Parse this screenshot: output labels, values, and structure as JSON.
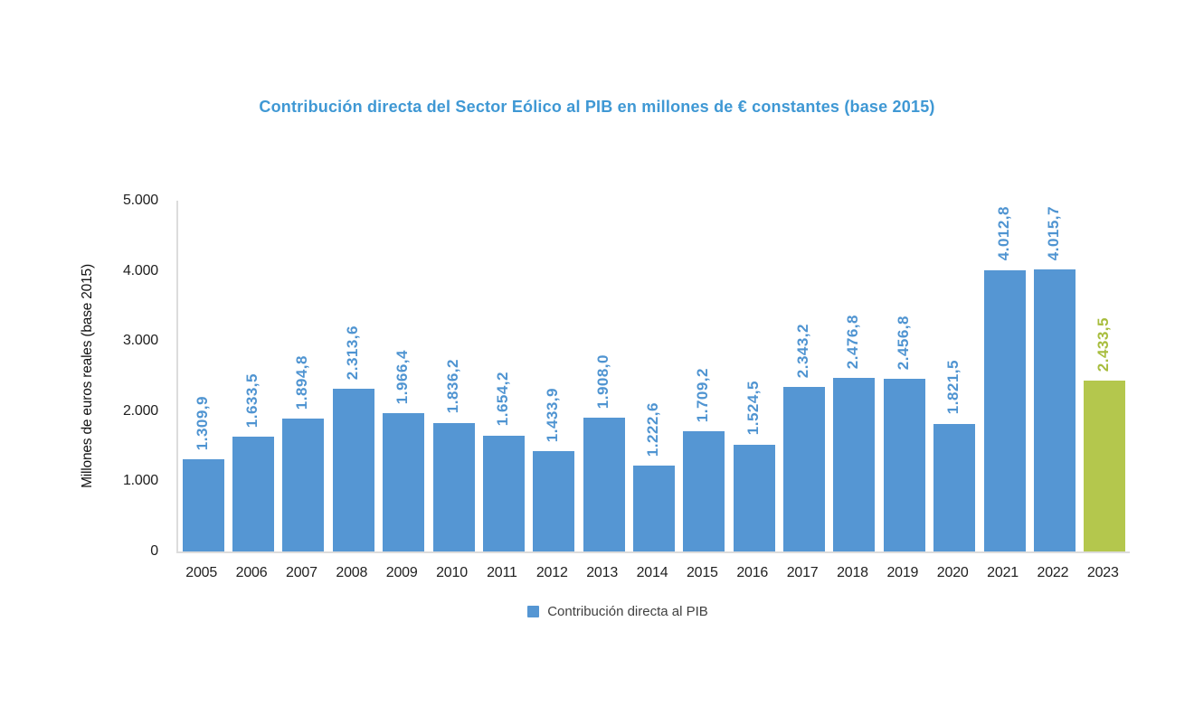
{
  "header": {
    "title": "Contribución directa del Sector Eólico al PIB en millones de € constantes (base 2015)"
  },
  "legend": {
    "label": "Contribución directa al PIB"
  },
  "colors": {
    "bar_blue": "#5596d3",
    "bar_green": "#b4c74d",
    "label_blue": "#4f94d1",
    "label_green": "#a8bd3e",
    "title_blue": "#3f98d4",
    "axis_line": "#dcdcdc",
    "tick_text": "#1f1f1f",
    "legend_text": "#404040"
  },
  "chart_data": {
    "type": "bar",
    "title": "Contribución directa del Sector Eólico al PIB en millones de € constantes (base 2015)",
    "xlabel": "",
    "ylabel": "Millones de euros reales (base 2015)",
    "ylim": [
      0,
      5000
    ],
    "grid": false,
    "legend_position": "bottom",
    "y_ticks": [
      {
        "value": 0,
        "label": "0"
      },
      {
        "value": 1000,
        "label": "1.000"
      },
      {
        "value": 2000,
        "label": "2.000"
      },
      {
        "value": 3000,
        "label": "3.000"
      },
      {
        "value": 4000,
        "label": "4.000"
      },
      {
        "value": 5000,
        "label": "5.000"
      }
    ],
    "categories": [
      "2005",
      "2006",
      "2007",
      "2008",
      "2009",
      "2010",
      "2011",
      "2012",
      "2013",
      "2014",
      "2015",
      "2016",
      "2017",
      "2018",
      "2019",
      "2020",
      "2021",
      "2022",
      "2023"
    ],
    "series": [
      {
        "name": "Contribución directa al PIB",
        "values": [
          1309.9,
          1633.5,
          1894.8,
          2313.6,
          1966.4,
          1836.2,
          1654.2,
          1433.9,
          1908.0,
          1222.6,
          1709.2,
          1524.5,
          2343.2,
          2476.8,
          2456.8,
          1821.5,
          4012.8,
          4015.7,
          2433.5
        ]
      }
    ],
    "value_labels": [
      "1.309,9",
      "1.633,5",
      "1.894,8",
      "2.313,6",
      "1.966,4",
      "1.836,2",
      "1.654,2",
      "1.433,9",
      "1.908,0",
      "1.222,6",
      "1.709,2",
      "1.524,5",
      "2.343,2",
      "2.476,8",
      "2.456,8",
      "1.821,5",
      "4.012,8",
      "4.015,7",
      "2.433,5"
    ],
    "highlight_category": "2023"
  }
}
